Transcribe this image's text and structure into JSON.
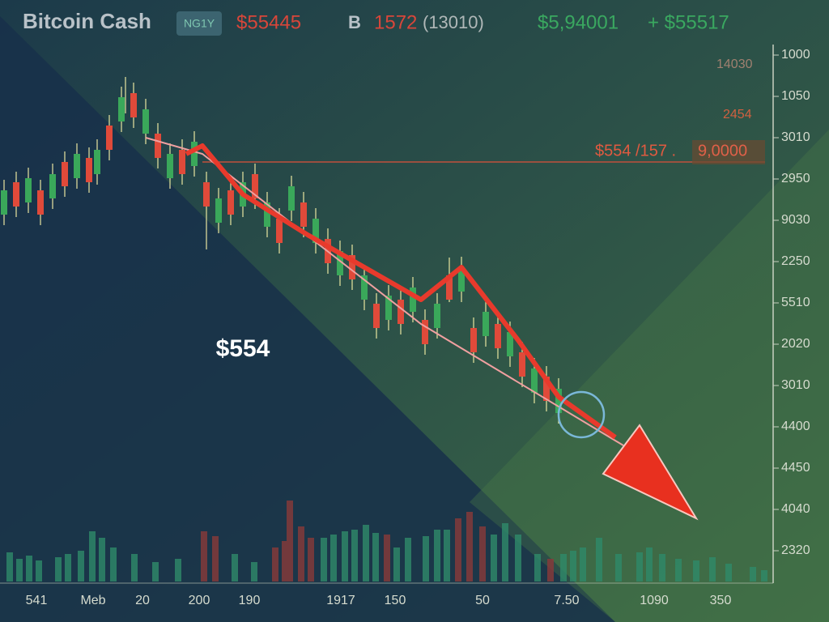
{
  "header": {
    "title": "Bitcoin Cash",
    "badge": "NG1Y",
    "price": "$55445",
    "volume_icon": "B",
    "volume": "1572",
    "volume_note": "(13010)",
    "high": "$5,94001",
    "change": "+ $55517"
  },
  "overlay_labels": [
    "14030",
    "2454"
  ],
  "price_line_label": {
    "text": "$554 /157 .",
    "value_box": "9,0000"
  },
  "y_axis_labels": [
    "1000",
    "1050",
    "3010",
    "2950",
    "9030",
    "2250",
    "5510",
    "2020",
    "3010",
    "4400",
    "4450",
    "4040",
    "2320"
  ],
  "x_axis_labels": [
    "541",
    "Meb",
    "20",
    "200",
    "190",
    "1917",
    "150",
    "50",
    "7.50",
    "1090",
    "350"
  ],
  "annotation": "$554"
}
